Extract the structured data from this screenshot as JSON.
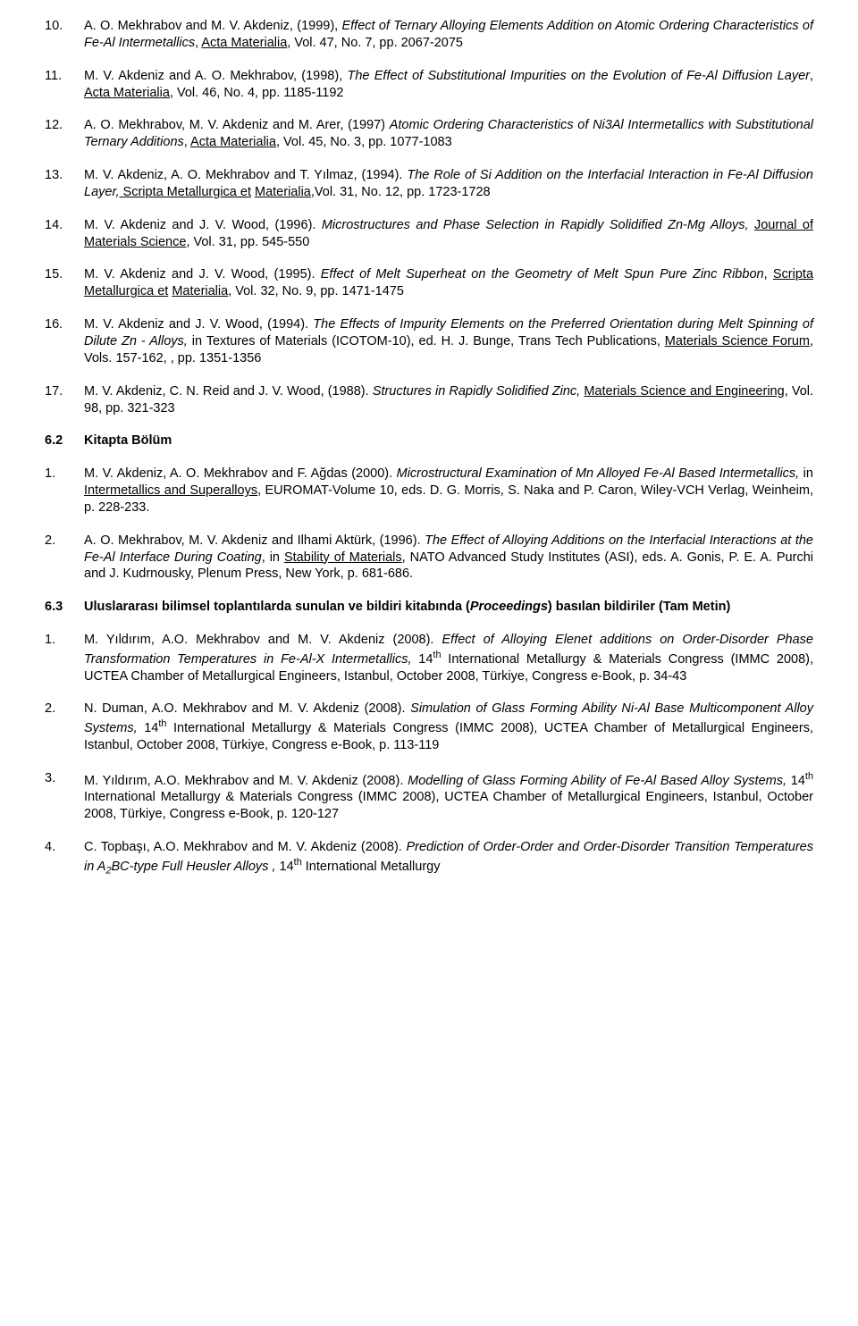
{
  "refs": [
    {
      "n": "10.",
      "body": [
        {
          "t": "A. O. Mekhrabov and M. V. Akdeniz, (1999), "
        },
        {
          "t": "Effect of Ternary Alloying Elements Addition on Atomic Ordering Characteristics of Fe-Al Intermetallics",
          "i": true
        },
        {
          "t": ", "
        },
        {
          "t": "Acta Materialia",
          "u": true
        },
        {
          "t": ", Vol. 47,   No. 7, pp. 2067-2075"
        }
      ]
    },
    {
      "n": "11.",
      "body": [
        {
          "t": "M. V. Akdeniz and A. O. Mekhrabov, (1998), "
        },
        {
          "t": "The Effect of Substitutional Impurities on the Evolution of Fe-Al Diffusion Layer",
          "i": true
        },
        {
          "t": ", "
        },
        {
          "t": "Acta Materialia",
          "u": true
        },
        {
          "t": ", Vol. 46,  No. 4, pp. 1185-1192"
        }
      ]
    },
    {
      "n": "12.",
      "body": [
        {
          "t": "A. O. Mekhrabov, M. V. Akdeniz and M. Arer, (1997) "
        },
        {
          "t": "Atomic Ordering Characteristics of Ni3Al Intermetallics with Substitutional Ternary Additions",
          "i": true
        },
        {
          "t": ", "
        },
        {
          "t": "Acta Materialia",
          "u": true
        },
        {
          "t": ", Vol. 45,  No. 3, pp. 1077-1083"
        }
      ]
    },
    {
      "n": "13.",
      "body": [
        {
          "t": "M. V. Akdeniz, A. O. Mekhrabov and T. Yılmaz, (1994). "
        },
        {
          "t": "The Role of Si Addition on the Interfacial Interaction in Fe-Al Diffusion Layer,",
          "i": true
        },
        {
          "t": " Scripta Metallurgica et",
          "u": true
        },
        {
          "t": " "
        },
        {
          "t": "Materialia",
          "u": true
        },
        {
          "t": ",Vol. 31, No. 12, pp. 1723-1728"
        }
      ]
    },
    {
      "n": "14.",
      "body": [
        {
          "t": "M. V. Akdeniz and J. V. Wood, (1996). "
        },
        {
          "t": "Microstructures and Phase Selection in Rapidly Solidified Zn-Mg Alloys,",
          "i": true
        },
        {
          "t": " "
        },
        {
          "t": "Journal of Materials Science",
          "u": true
        },
        {
          "t": ", Vol. 31, pp. 545-550"
        }
      ]
    },
    {
      "n": "15.",
      "body": [
        {
          "t": "M. V. Akdeniz and J. V. Wood, (1995). "
        },
        {
          "t": "Effect of Melt Superheat on the Geometry of Melt Spun Pure Zinc Ribbon",
          "i": true
        },
        {
          "t": ", "
        },
        {
          "t": "Scripta Metallurgica et",
          "u": true
        },
        {
          "t": " "
        },
        {
          "t": "Materialia",
          "u": true
        },
        {
          "t": ", Vol. 32, No. 9, pp. 1471-1475"
        }
      ]
    },
    {
      "n": "16.",
      "body": [
        {
          "t": "M. V. Akdeniz and J. V. Wood, (1994). "
        },
        {
          "t": "The Effects of Impurity Elements on the Preferred Orientation during Melt Spinning of  Dilute Zn - Alloys,",
          "i": true
        },
        {
          "t": " in Textures of Materials (ICOTOM-10), ed. H. J. Bunge, Trans Tech Publications,  "
        },
        {
          "t": "Materials Science Forum",
          "u": true
        },
        {
          "t": ", Vols. 157-162, , pp. 1351-1356"
        }
      ]
    },
    {
      "n": "17.",
      "body": [
        {
          "t": "M. V. Akdeniz, C. N. Reid and J. V. Wood, (1988). "
        },
        {
          "t": "Structures in Rapidly Solidified Zinc,",
          "i": true
        },
        {
          "t": " "
        },
        {
          "t": "Materials Science and  Engineering",
          "u": true
        },
        {
          "t": ", Vol. 98, pp. 321-323"
        }
      ]
    }
  ],
  "section62": {
    "n": "6.2",
    "title": "Kitapta Bölüm"
  },
  "book": [
    {
      "n": "1.",
      "body": [
        {
          "t": "M. V. Akdeniz, A. O. Mekhrabov and F. Ağdas (2000). "
        },
        {
          "t": "Microstructural Examination of Mn Alloyed Fe-Al Based Intermetallics,",
          "i": true
        },
        {
          "t": " in "
        },
        {
          "t": "Intermetallics and Superalloys",
          "u": true
        },
        {
          "t": ", EUROMAT-Volume 10, eds. D. G. Morris, S. Naka and P. Caron, Wiley-VCH Verlag, Weinheim, p. 228-233."
        }
      ]
    },
    {
      "n": "2.",
      "body": [
        {
          "t": "A. O. Mekhrabov, M. V. Akdeniz and Ilhami Aktürk, (1996). "
        },
        {
          "t": "The Effect of Alloying Additions on the Interfacial Interactions at the Fe-Al Interface During Coating",
          "i": true
        },
        {
          "t": ", in "
        },
        {
          "t": "Stability of Materials",
          "u": true
        },
        {
          "t": ", NATO Advanced Study Institutes (ASI), eds.  A. Gonis, P. E. A. Purchi and J. Kudrnousky, Plenum Press, New York, p. 681-686."
        }
      ]
    }
  ],
  "section63": {
    "n": "6.3",
    "title_part1": "Uluslararası bilimsel toplantılarda sunulan ve bildiri kitabında (",
    "title_italic": "Proceedings",
    "title_part2": ") basılan bildiriler (Tam Metin)"
  },
  "proc": [
    {
      "n": "1.",
      "body": [
        {
          "t": "M. Yıldırım, A.O. Mekhrabov and M. V. Akdeniz (2008). "
        },
        {
          "t": "Effect of Alloying Elenet additions on Order-Disorder Phase Transformation Temperatures in Fe-Al-X Intermetallics,",
          "i": true
        },
        {
          "t": " 14"
        },
        {
          "t": "th",
          "sup": true
        },
        {
          "t": " International Metallurgy & Materials Congress (IMMC 2008), UCTEA Chamber of Metallurgical Engineers, Istanbul, October 2008, Türkiye, Congress e-Book, p. 34-43"
        }
      ]
    },
    {
      "n": "2.",
      "body": [
        {
          "t": "N. Duman, A.O. Mekhrabov and M. V. Akdeniz (2008). "
        },
        {
          "t": "Simulation of Glass Forming Ability Ni-Al Base Multicomponent Alloy Systems,",
          "i": true
        },
        {
          "t": " 14"
        },
        {
          "t": "th",
          "sup": true
        },
        {
          "t": " International Metallurgy & Materials Congress (IMMC 2008), UCTEA Chamber of Metallurgical Engineers, Istanbul, October 2008, Türkiye, Congress e-Book, p. 113-119"
        }
      ]
    },
    {
      "n": "3.",
      "body": [
        {
          "t": "M. Yıldırım, A.O. Mekhrabov and M. V. Akdeniz (2008). "
        },
        {
          "t": "Modelling of Glass Forming Ability of Fe-Al Based Alloy Systems,",
          "i": true
        },
        {
          "t": " 14"
        },
        {
          "t": "th",
          "sup": true
        },
        {
          "t": " International Metallurgy & Materials Congress (IMMC 2008), UCTEA Chamber of Metallurgical Engineers, Istanbul, October 2008, Türkiye, Congress e-Book, p. 120-127"
        }
      ]
    },
    {
      "n": "4.",
      "body": [
        {
          "t": "C. Topbaşı, A.O. Mekhrabov and M. V. Akdeniz (2008). "
        },
        {
          "t": "Prediction of Order-Order and Order-Disorder Transition Temperatures in A",
          "i": true
        },
        {
          "t": "2",
          "i": true,
          "sub": true
        },
        {
          "t": "BC-type Full Heusler Alloys ,",
          "i": true
        },
        {
          "t": " 14"
        },
        {
          "t": "th",
          "sup": true
        },
        {
          "t": " International Metallurgy"
        }
      ]
    }
  ]
}
